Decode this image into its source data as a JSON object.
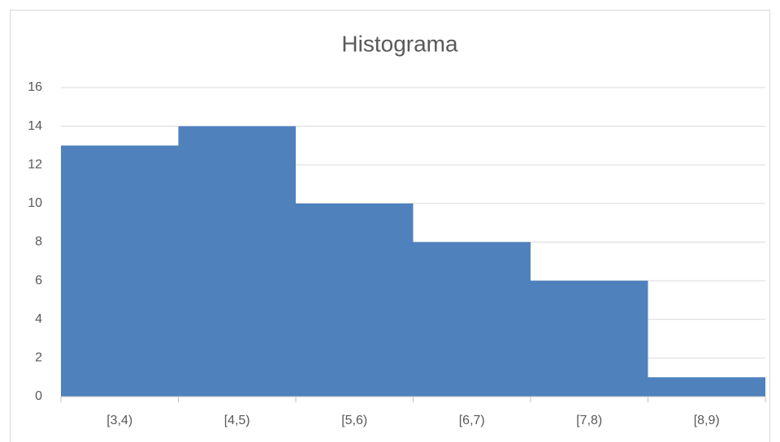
{
  "chart_data": {
    "type": "bar",
    "title": "Histograma",
    "categories": [
      "[3,4)",
      "[4,5)",
      "[5,6)",
      "[6,7)",
      "[7,8)",
      "[8,9)"
    ],
    "values": [
      13,
      14,
      10,
      8,
      6,
      1
    ],
    "color": "#4f81bd",
    "ylim": [
      0,
      16
    ],
    "yticks": [
      0,
      2,
      4,
      6,
      8,
      10,
      12,
      14,
      16
    ],
    "grid": true
  }
}
